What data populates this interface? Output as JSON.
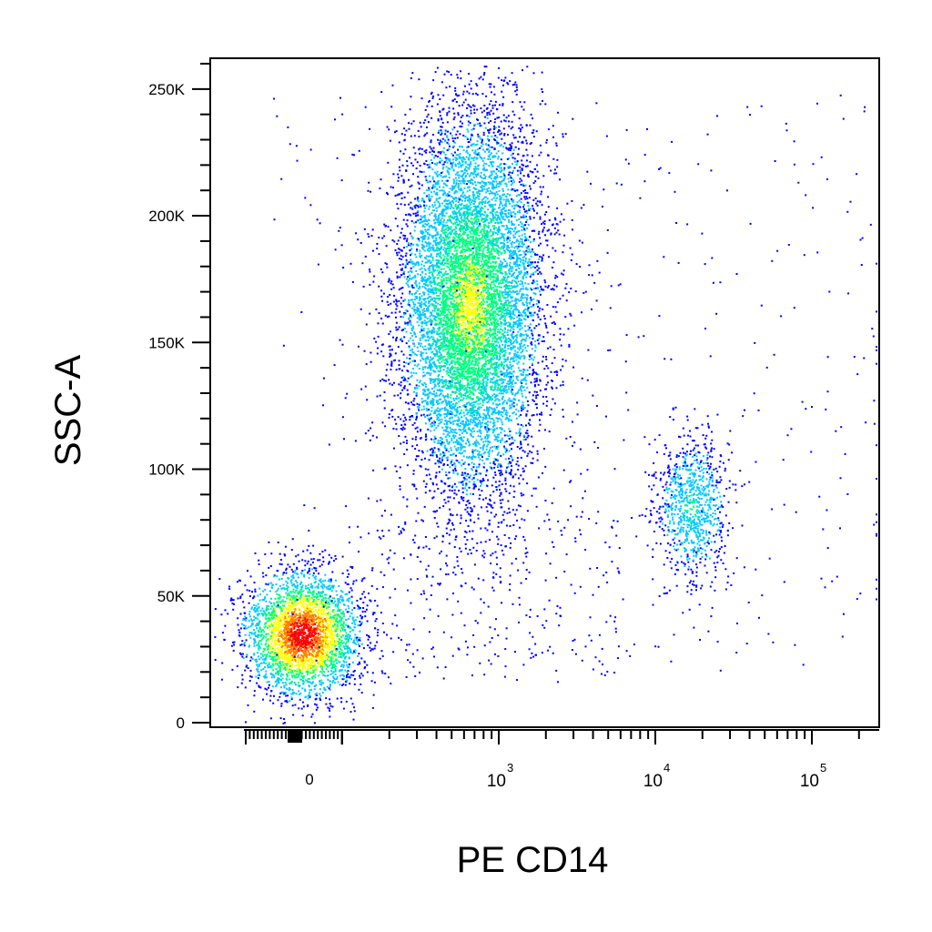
{
  "chart_data": {
    "type": "scatter",
    "subtype": "flow-cytometry-pseudocolor-dot-plot",
    "title": "",
    "xlabel": "PE CD14",
    "ylabel": "SSC-A",
    "x_scale": "biexponential",
    "y_scale": "linear",
    "xlim": [
      -100,
      200000
    ],
    "ylim": [
      0,
      262144
    ],
    "x_tick_labels": [
      {
        "value": 0,
        "label": "0"
      },
      {
        "value": 1000,
        "label": "10",
        "exponent": "3"
      },
      {
        "value": 10000,
        "label": "10",
        "exponent": "4"
      },
      {
        "value": 100000,
        "label": "10",
        "exponent": "5"
      }
    ],
    "y_tick_labels": [
      {
        "value": 0,
        "label": "0"
      },
      {
        "value": 50000,
        "label": "50K"
      },
      {
        "value": 100000,
        "label": "100K"
      },
      {
        "value": 150000,
        "label": "150K"
      },
      {
        "value": 200000,
        "label": "200K"
      },
      {
        "value": 250000,
        "label": "250K"
      }
    ],
    "color_scale": [
      "#0000ff",
      "#00c8ff",
      "#00ff80",
      "#ffff00",
      "#ff8000",
      "#ff0000"
    ],
    "populations": [
      {
        "center_x": 0,
        "center_y": 35000,
        "spread_x": 0.18,
        "spread_y": 12000,
        "count": 3200,
        "density": "high"
      },
      {
        "center_x": 350,
        "center_y": 165000,
        "spread_x": 0.22,
        "spread_y": 38000,
        "count": 9000,
        "density": "medium"
      },
      {
        "center_x": 17000,
        "center_y": 85000,
        "spread_x": 0.12,
        "spread_y": 14000,
        "count": 900,
        "density": "low"
      }
    ],
    "grid": false,
    "legend": "none"
  }
}
